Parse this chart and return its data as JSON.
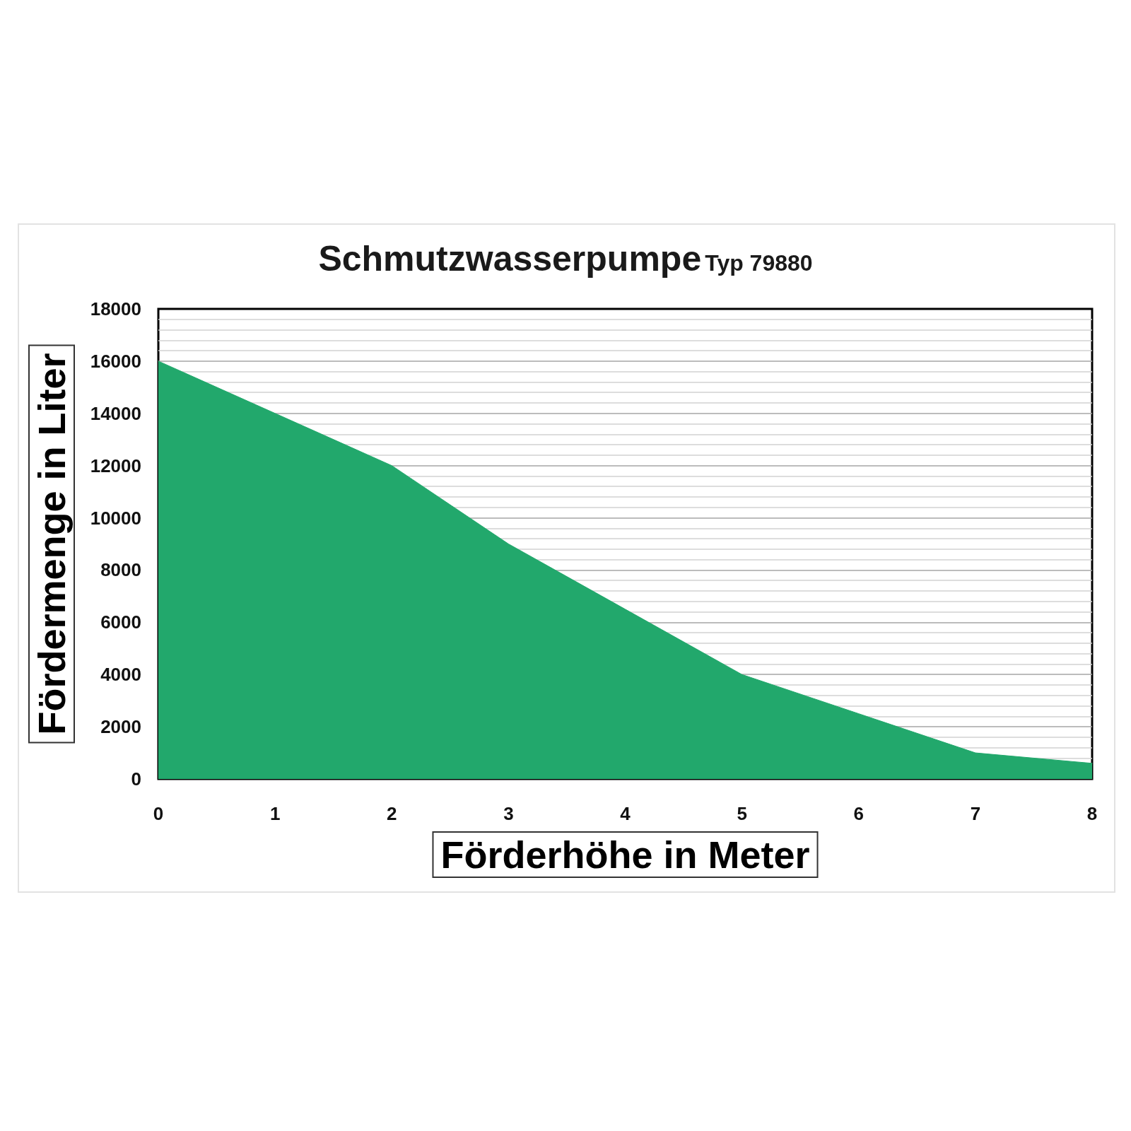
{
  "chart_data": {
    "type": "area",
    "title": "Schmutzwasserpumpe",
    "subtitle": "Typ 79880",
    "xlabel": "Förderhöhe in Meter",
    "ylabel": "Fördermenge in Liter",
    "x": [
      0,
      1,
      2,
      3,
      4,
      5,
      6,
      7,
      8
    ],
    "values": [
      16000,
      14000,
      12000,
      9000,
      6500,
      4000,
      2500,
      1000,
      600
    ],
    "color": "#22a86c",
    "xlim": [
      0,
      8
    ],
    "xticks": [
      0,
      1,
      2,
      3,
      4,
      5,
      6,
      7,
      8
    ],
    "ylim": [
      0,
      18000
    ],
    "yticks": [
      0,
      {
        "value": 800,
        "label": null
      },
      {
        "value": 1200,
        "label": null
      },
      {
        "value": 1600,
        "label": null
      },
      2000,
      {
        "value": 2400,
        "label": null
      },
      {
        "value": 2800,
        "label": null
      },
      {
        "value": 3200,
        "label": null
      },
      {
        "value": 3600,
        "label": null
      },
      4000,
      {
        "value": 4400,
        "label": null
      },
      {
        "value": 4800,
        "label": null
      },
      {
        "value": 5200,
        "label": null
      },
      {
        "value": 5600,
        "label": null
      },
      6000,
      {
        "value": 6400,
        "label": null
      },
      {
        "value": 6800,
        "label": null
      },
      {
        "value": 7200,
        "label": null
      },
      {
        "value": 7600,
        "label": null
      },
      8000,
      {
        "value": 8400,
        "label": null
      },
      {
        "value": 8800,
        "label": null
      },
      {
        "value": 9200,
        "label": null
      },
      {
        "value": 9600,
        "label": null
      },
      10000,
      {
        "value": 10400,
        "label": null
      },
      {
        "value": 10800,
        "label": null
      },
      {
        "value": 11200,
        "label": null
      },
      {
        "value": 11600,
        "label": null
      },
      12000,
      {
        "value": 12400,
        "label": null
      },
      {
        "value": 12800,
        "label": null
      },
      {
        "value": 13200,
        "label": null
      },
      {
        "value": 13600,
        "label": null
      },
      14000,
      {
        "value": 14400,
        "label": null
      },
      {
        "value": 14800,
        "label": null
      },
      {
        "value": 15200,
        "label": null
      },
      {
        "value": 15600,
        "label": null
      },
      16000,
      {
        "value": 16400,
        "label": null
      },
      {
        "value": 16800,
        "label": null
      },
      {
        "value": 17200,
        "label": null
      },
      {
        "value": 17600,
        "label": null
      },
      18000
    ],
    "grid": "y",
    "marker": "none"
  }
}
